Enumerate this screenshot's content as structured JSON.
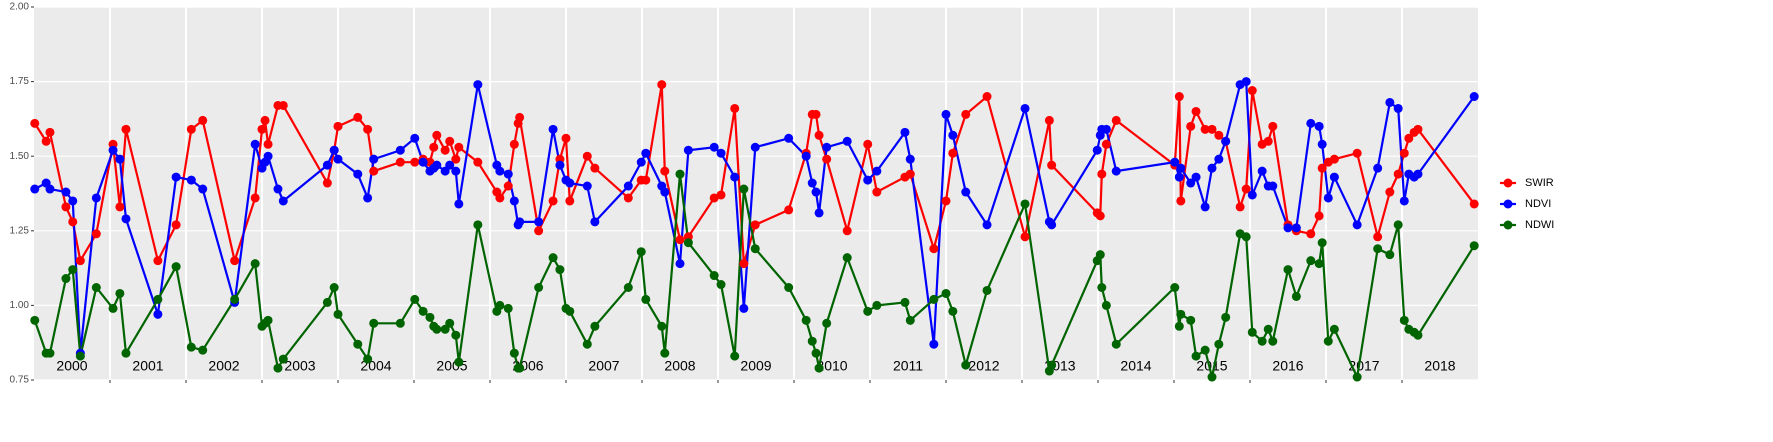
{
  "chart_data": {
    "type": "line",
    "x": [
      2000.01,
      2000.16,
      2000.21,
      2000.42,
      2000.51,
      2000.61,
      2000.82,
      2001.04,
      2001.13,
      2001.21,
      2001.63,
      2001.87,
      2002.07,
      2002.22,
      2002.64,
      2002.91,
      2003.0,
      2003.04,
      2003.08,
      2003.21,
      2003.28,
      2003.86,
      2003.95,
      2004.0,
      2004.26,
      2004.39,
      2004.47,
      2004.82,
      2005.01,
      2005.12,
      2005.21,
      2005.26,
      2005.3,
      2005.41,
      2005.47,
      2005.55,
      2005.59,
      2005.84,
      2006.09,
      2006.13,
      2006.24,
      2006.32,
      2006.37,
      2006.39,
      2006.64,
      2006.83,
      2006.92,
      2007.0,
      2007.05,
      2007.28,
      2007.38,
      2007.82,
      2007.99,
      2008.05,
      2008.26,
      2008.3,
      2008.5,
      2008.61,
      2008.95,
      2009.04,
      2009.22,
      2009.34,
      2009.49,
      2009.93,
      2010.16,
      2010.24,
      2010.29,
      2010.33,
      2010.43,
      2010.7,
      2010.97,
      2011.09,
      2011.46,
      2011.53,
      2011.84,
      2012.0,
      2012.09,
      2012.26,
      2012.54,
      2013.04,
      2013.36,
      2013.39,
      2013.99,
      2014.03,
      2014.05,
      2014.11,
      2014.24,
      2015.01,
      2015.07,
      2015.09,
      2015.22,
      2015.29,
      2015.41,
      2015.5,
      2015.59,
      2015.68,
      2015.87,
      2015.95,
      2016.03,
      2016.16,
      2016.24,
      2016.3,
      2016.5,
      2016.61,
      2016.8,
      2016.91,
      2016.95,
      2017.03,
      2017.11,
      2017.41,
      2017.68,
      2017.84,
      2017.95,
      2018.03,
      2018.09,
      2018.16,
      2018.21,
      2018.95
    ],
    "series": [
      {
        "name": "SWIR",
        "color": "#ff0000",
        "values": [
          1.61,
          1.55,
          1.58,
          1.33,
          1.28,
          1.15,
          1.24,
          1.54,
          1.33,
          1.59,
          1.15,
          1.27,
          1.59,
          1.62,
          1.15,
          1.36,
          1.59,
          1.62,
          1.54,
          1.67,
          1.67,
          1.41,
          1.52,
          1.6,
          1.63,
          1.59,
          1.45,
          1.48,
          1.48,
          1.49,
          1.48,
          1.53,
          1.57,
          1.52,
          1.55,
          1.49,
          1.53,
          1.48,
          1.38,
          1.36,
          1.4,
          1.54,
          1.61,
          1.63,
          1.25,
          1.35,
          1.49,
          1.56,
          1.35,
          1.5,
          1.46,
          1.36,
          1.42,
          1.42,
          1.74,
          1.45,
          1.22,
          1.23,
          1.36,
          1.37,
          1.66,
          1.14,
          1.27,
          1.32,
          1.51,
          1.64,
          1.64,
          1.57,
          1.49,
          1.25,
          1.54,
          1.38,
          1.43,
          1.44,
          1.19,
          1.35,
          1.51,
          1.64,
          1.7,
          1.23,
          1.62,
          1.47,
          1.31,
          1.3,
          1.44,
          1.54,
          1.62,
          1.47,
          1.7,
          1.35,
          1.6,
          1.65,
          1.59,
          1.59,
          1.57,
          1.55,
          1.33,
          1.39,
          1.72,
          1.54,
          1.55,
          1.6,
          1.27,
          1.25,
          1.24,
          1.3,
          1.46,
          1.48,
          1.49,
          1.51,
          1.23,
          1.38,
          1.44,
          1.51,
          1.56,
          1.58,
          1.59,
          1.34
        ]
      },
      {
        "name": "NDVI",
        "color": "#0000ff",
        "values": [
          1.39,
          1.41,
          1.39,
          1.38,
          1.35,
          0.84,
          1.36,
          1.52,
          1.49,
          1.29,
          0.97,
          1.43,
          1.42,
          1.39,
          1.01,
          1.54,
          1.46,
          1.48,
          1.5,
          1.39,
          1.35,
          1.47,
          1.52,
          1.49,
          1.44,
          1.36,
          1.49,
          1.52,
          1.56,
          1.48,
          1.45,
          1.46,
          1.47,
          1.45,
          1.47,
          1.45,
          1.34,
          1.74,
          1.47,
          1.45,
          1.44,
          1.35,
          1.27,
          1.28,
          1.28,
          1.59,
          1.47,
          1.42,
          1.41,
          1.4,
          1.28,
          1.4,
          1.48,
          1.51,
          1.4,
          1.38,
          1.14,
          1.52,
          1.53,
          1.51,
          1.43,
          0.99,
          1.53,
          1.56,
          1.5,
          1.41,
          1.38,
          1.31,
          1.53,
          1.55,
          1.42,
          1.45,
          1.58,
          1.49,
          0.87,
          1.64,
          1.57,
          1.38,
          1.27,
          1.66,
          1.28,
          1.27,
          1.52,
          1.57,
          1.59,
          1.59,
          1.45,
          1.48,
          1.43,
          1.46,
          1.41,
          1.43,
          1.33,
          1.46,
          1.49,
          1.55,
          1.74,
          1.75,
          1.37,
          1.45,
          1.4,
          1.4,
          1.26,
          1.26,
          1.61,
          1.6,
          1.54,
          1.36,
          1.43,
          1.27,
          1.46,
          1.68,
          1.66,
          1.35,
          1.44,
          1.43,
          1.44,
          1.7
        ]
      },
      {
        "name": "NDWI",
        "color": "#006400",
        "values": [
          0.95,
          0.84,
          0.84,
          1.09,
          1.12,
          0.83,
          1.06,
          0.99,
          1.04,
          0.84,
          1.02,
          1.13,
          0.86,
          0.85,
          1.02,
          1.14,
          0.93,
          0.94,
          0.95,
          0.79,
          0.82,
          1.01,
          1.06,
          0.97,
          0.87,
          0.82,
          0.94,
          0.94,
          1.02,
          0.98,
          0.96,
          0.93,
          0.92,
          0.92,
          0.94,
          0.9,
          0.81,
          1.27,
          0.98,
          1.0,
          0.99,
          0.84,
          0.79,
          0.79,
          1.06,
          1.16,
          1.12,
          0.99,
          0.98,
          0.87,
          0.93,
          1.06,
          1.18,
          1.02,
          0.93,
          0.84,
          1.44,
          1.21,
          1.1,
          1.07,
          0.83,
          1.39,
          1.19,
          1.06,
          0.95,
          0.88,
          0.84,
          0.79,
          0.94,
          1.16,
          0.98,
          1.0,
          1.01,
          0.95,
          1.02,
          1.04,
          0.98,
          0.8,
          1.05,
          1.34,
          0.78,
          0.8,
          1.15,
          1.17,
          1.06,
          1.0,
          0.87,
          1.06,
          0.93,
          0.97,
          0.95,
          0.83,
          0.85,
          0.76,
          0.87,
          0.96,
          1.24,
          1.23,
          0.91,
          0.88,
          0.92,
          0.88,
          1.12,
          1.03,
          1.15,
          1.14,
          1.21,
          0.88,
          0.92,
          0.76,
          1.19,
          1.17,
          1.27,
          0.95,
          0.92,
          0.91,
          0.9,
          1.2
        ]
      }
    ],
    "xlim": [
      2000,
      2019
    ],
    "xticks": [
      {
        "value": 2000.5,
        "label": "2000"
      },
      {
        "value": 2001.5,
        "label": "2001"
      },
      {
        "value": 2002.5,
        "label": "2002"
      },
      {
        "value": 2003.5,
        "label": "2003"
      },
      {
        "value": 2004.5,
        "label": "2004"
      },
      {
        "value": 2005.5,
        "label": "2005"
      },
      {
        "value": 2006.5,
        "label": "2006"
      },
      {
        "value": 2007.5,
        "label": "2007"
      },
      {
        "value": 2008.5,
        "label": "2008"
      },
      {
        "value": 2009.5,
        "label": "2009"
      },
      {
        "value": 2010.5,
        "label": "2010"
      },
      {
        "value": 2011.5,
        "label": "2011"
      },
      {
        "value": 2012.5,
        "label": "2012"
      },
      {
        "value": 2013.5,
        "label": "2013"
      },
      {
        "value": 2014.5,
        "label": "2014"
      },
      {
        "value": 2015.5,
        "label": "2015"
      },
      {
        "value": 2016.5,
        "label": "2016"
      },
      {
        "value": 2017.5,
        "label": "2017"
      },
      {
        "value": 2018.5,
        "label": "2018"
      }
    ],
    "xgrid": [
      2001,
      2002,
      2003,
      2004,
      2005,
      2006,
      2007,
      2008,
      2009,
      2010,
      2011,
      2012,
      2013,
      2014,
      2015,
      2016,
      2017,
      2018
    ],
    "ylim": [
      0.75,
      2.0
    ],
    "yticks": [
      {
        "value": 0.75,
        "label": "0.75"
      },
      {
        "value": 1,
        "label": "1.00"
      },
      {
        "value": 1.25,
        "label": "1.25"
      },
      {
        "value": 1.5,
        "label": "1.50"
      },
      {
        "value": 1.75,
        "label": "1.75"
      },
      {
        "value": 2,
        "label": "2.00"
      }
    ],
    "grid": true,
    "legend": "right"
  }
}
